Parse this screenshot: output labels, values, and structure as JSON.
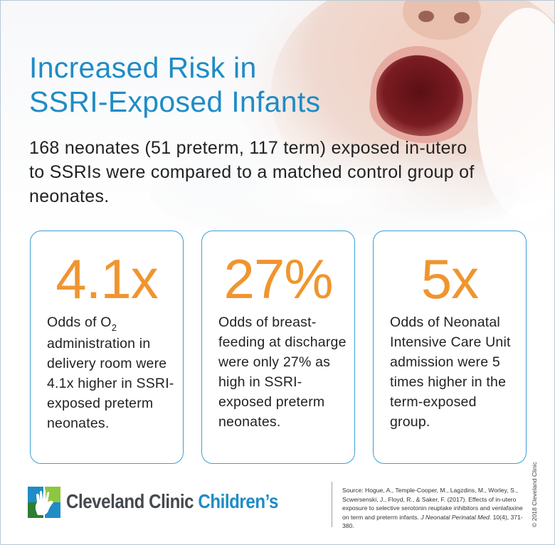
{
  "title": {
    "line1": "Increased Risk in",
    "line2": "SSRI-Exposed Infants"
  },
  "intro": "168 neonates (51 preterm, 117 term) exposed in-utero to SSRIs were compared to a matched control group of neonates.",
  "cards": [
    {
      "stat": "4.1x",
      "desc_pre": "Odds of O",
      "desc_sub": "2",
      "desc_post": " administration in delivery room were 4.1x higher in SSRI-exposed preterm neonates."
    },
    {
      "stat": "27%",
      "desc": "Odds of breast-feeding at discharge were only 27% as high in SSRI-exposed preterm neonates."
    },
    {
      "stat": "5x",
      "desc": "Odds of Neonatal Intensive Care Unit admission were 5 times higher in the term-exposed group."
    }
  ],
  "brand": {
    "name": "Cleveland Clinic",
    "sub": "Children’s"
  },
  "source": {
    "text": "Source: Hogue, A., Temple-Cooper, M., Lagzdins, M., Worley, S., Scwersenski, J., Floyd, R., & Saker, F. (2017). Effects of in-utero exposure to selective serotonin reuptake inhibitors and venlafaxine on term and preterm infants.",
    "journal": "J Neonatal Perinatal Med.",
    "tail": "10(4), 371-380."
  },
  "copyright": "© 2018 Cleveland Clinic",
  "colors": {
    "title": "#1f8cc6",
    "stat": "#f0952f",
    "card_border": "#3a9fd4",
    "brand_gray": "#444a4f"
  }
}
